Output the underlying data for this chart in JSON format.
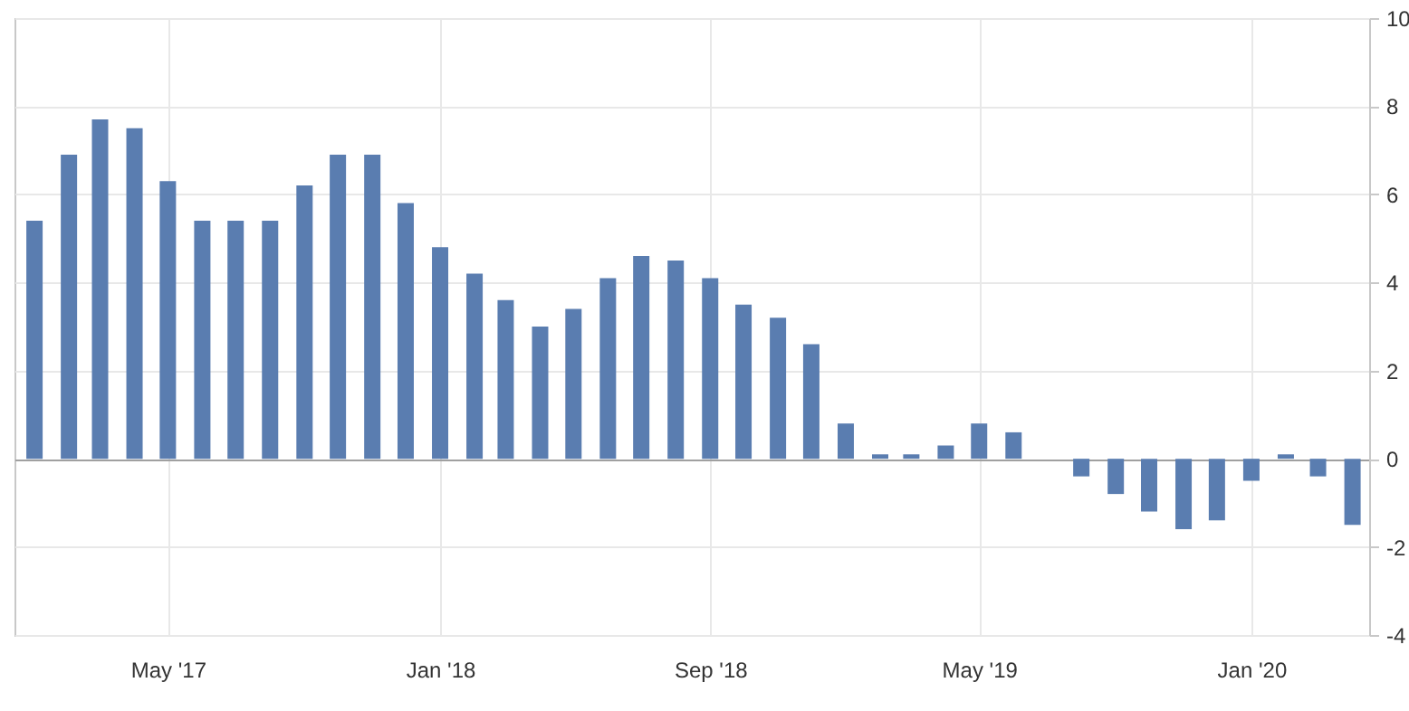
{
  "chart_data": {
    "type": "bar",
    "x": [
      "2017-01",
      "2017-02",
      "2017-03",
      "2017-04",
      "2017-05",
      "2017-06",
      "2017-07",
      "2017-08",
      "2017-09",
      "2017-10",
      "2017-11",
      "2017-12",
      "2018-01",
      "2018-02",
      "2018-03",
      "2018-04",
      "2018-05",
      "2018-06",
      "2018-07",
      "2018-08",
      "2018-09",
      "2018-10",
      "2018-11",
      "2018-12",
      "2019-01",
      "2019-02",
      "2019-03",
      "2019-04",
      "2019-05",
      "2019-06",
      "2019-07",
      "2019-08",
      "2019-09",
      "2019-10",
      "2019-11",
      "2019-12",
      "2020-01",
      "2020-02",
      "2020-03",
      "2020-04"
    ],
    "series": [
      {
        "color": "#5a7db0",
        "values": [
          5.4,
          6.9,
          7.7,
          7.5,
          6.3,
          5.4,
          5.4,
          5.4,
          6.2,
          6.9,
          6.9,
          5.8,
          4.8,
          4.2,
          3.6,
          3.0,
          3.4,
          4.1,
          4.6,
          4.5,
          4.1,
          3.5,
          3.2,
          2.6,
          0.8,
          0.1,
          0.1,
          0.3,
          0.8,
          0.6,
          null,
          -0.4,
          -0.8,
          -1.2,
          -1.6,
          -1.4,
          -0.5,
          0.1,
          -0.4,
          -1.5
        ]
      }
    ],
    "xlim": [
      "2016-12-14",
      "2020-04-16"
    ],
    "xticks": [
      {
        "value": "2017-05",
        "label": "May '17"
      },
      {
        "value": "2018-01",
        "label": "Jan '18"
      },
      {
        "value": "2018-09",
        "label": "Sep '18"
      },
      {
        "value": "2019-05",
        "label": "May '19"
      },
      {
        "value": "2020-01",
        "label": "Jan '20"
      }
    ],
    "ylim": [
      -4,
      10
    ],
    "yticks": [
      -4,
      -2,
      0,
      2,
      4,
      6,
      8,
      10
    ],
    "grid": true
  }
}
